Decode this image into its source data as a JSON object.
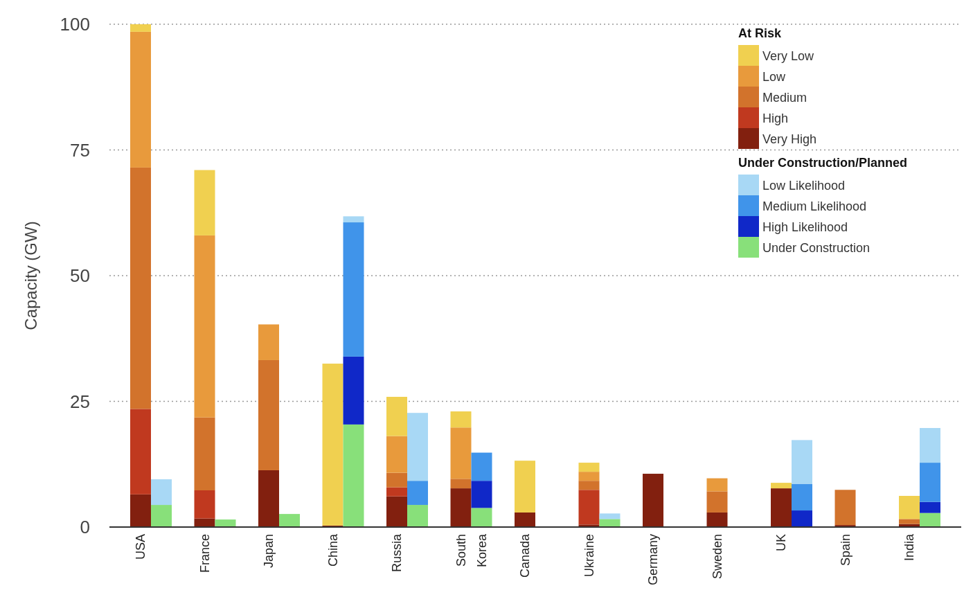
{
  "chart_data": {
    "type": "bar",
    "stacked": true,
    "ylabel": "Capacity (GW)",
    "legend_title": "At Risk",
    "annotations": [
      "Under Construction/Planned"
    ],
    "categories": [
      "USA",
      null,
      "France",
      null,
      "Japan",
      null,
      "China",
      null,
      "Russia",
      null,
      "South",
      "Korea",
      "Canada",
      null,
      "Ukraine",
      null,
      "Germany",
      null,
      "Sweden",
      null,
      "UK",
      null,
      "Spain",
      null,
      "India",
      null
    ],
    "ylim": [
      0,
      100
    ],
    "yticks": [
      0,
      25,
      50,
      75,
      100
    ],
    "grid": "y",
    "legend": "top right",
    "series": [
      {
        "name": "Very High",
        "color": "#82200f",
        "values": [
          6.5,
          null,
          1.7,
          null,
          11.3,
          null,
          0.3,
          null,
          6.1,
          null,
          7.7,
          null,
          2.9,
          null,
          0.5,
          null,
          10.6,
          null,
          2.9,
          null,
          7.7,
          null,
          0.4,
          null,
          0.6,
          null
        ]
      },
      {
        "name": "High",
        "color": "#c0391f",
        "values": [
          17,
          null,
          5.6,
          null,
          null,
          null,
          null,
          null,
          1.8,
          null,
          null,
          null,
          null,
          null,
          6.9,
          null,
          null,
          null,
          null,
          null,
          null,
          null,
          null,
          null,
          null,
          null
        ]
      },
      {
        "name": "Medium",
        "color": "#d2732c",
        "values": [
          48,
          null,
          14.5,
          null,
          21.9,
          null,
          null,
          null,
          2.9,
          null,
          1.9,
          null,
          null,
          null,
          1.8,
          null,
          null,
          null,
          4.2,
          null,
          null,
          null,
          7,
          null,
          1,
          null
        ]
      },
      {
        "name": "Low",
        "color": "#e89a3c",
        "values": [
          27,
          null,
          36.2,
          null,
          7.1,
          null,
          null,
          null,
          7.3,
          null,
          10.2,
          null,
          null,
          null,
          1.8,
          null,
          null,
          null,
          2.6,
          null,
          null,
          null,
          null,
          null,
          null,
          null
        ]
      },
      {
        "name": "Very Low",
        "color": "#f0d050",
        "values": [
          1.5,
          null,
          13,
          null,
          null,
          null,
          32.2,
          null,
          7.8,
          null,
          3.2,
          null,
          10.3,
          null,
          1.8,
          null,
          null,
          null,
          null,
          null,
          1.1,
          null,
          null,
          null,
          4.6,
          null
        ]
      },
      {
        "name": "Under Construction",
        "color": "#88e07a",
        "values": [
          null,
          4.4,
          null,
          1.5,
          null,
          2.6,
          null,
          20.4,
          null,
          4.4,
          null,
          3.8,
          null,
          null,
          null,
          1.6,
          null,
          null,
          null,
          null,
          null,
          null,
          null,
          null,
          null,
          2.8
        ]
      },
      {
        "name": "High Likelihood",
        "color": "#1028c8",
        "values": [
          null,
          null,
          null,
          null,
          null,
          null,
          null,
          13.5,
          null,
          null,
          null,
          5.4,
          null,
          null,
          null,
          null,
          null,
          null,
          null,
          null,
          null,
          3.3,
          null,
          null,
          null,
          2.2
        ]
      },
      {
        "name": "Medium Likelihood",
        "color": "#4094ea",
        "values": [
          null,
          null,
          null,
          null,
          null,
          null,
          null,
          26.7,
          null,
          4.8,
          null,
          5.6,
          null,
          null,
          null,
          null,
          null,
          null,
          null,
          null,
          null,
          5.3,
          null,
          null,
          null,
          7.8
        ]
      },
      {
        "name": "Low Likelihood",
        "color": "#a8d8f5",
        "values": [
          null,
          5.1,
          null,
          null,
          null,
          null,
          null,
          1.2,
          null,
          13.5,
          null,
          null,
          null,
          null,
          null,
          1.1,
          null,
          null,
          null,
          null,
          null,
          8.7,
          null,
          null,
          null,
          6.9
        ]
      }
    ]
  }
}
